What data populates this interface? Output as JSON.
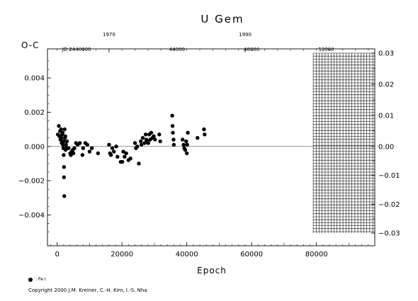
{
  "chart_data": {
    "type": "scatter",
    "title": "U Gem",
    "ylabel": "O-C",
    "xlabel": "Epoch",
    "xlim": [
      -3000,
      98000
    ],
    "ylim": [
      -0.0058,
      0.0057
    ],
    "x_ticks": [
      0,
      20000,
      40000,
      60000,
      80000
    ],
    "x_tick_labels": [
      "0",
      "20000",
      "40000",
      "60000",
      "80000"
    ],
    "y_left_ticks": [
      -0.004,
      -0.002,
      0.0,
      0.002,
      0.004
    ],
    "y_left_tick_labels": [
      "−0.004",
      "−0.002",
      "0.000",
      "0.002",
      "0.004"
    ],
    "y_right_ticks": [
      -0.03,
      -0.02,
      -0.01,
      0.0,
      0.01,
      0.02,
      0.03
    ],
    "y_right_tick_labels": [
      "−0.03",
      "−0.02",
      "−0.01",
      "0.00",
      "0.01",
      "0.02",
      "0.03"
    ],
    "y_right_lim": [
      -0.03,
      0.03
    ],
    "top_year_axis": {
      "ticks": [
        {
          "label": "1970",
          "x": 16000
        },
        {
          "label": "1990",
          "x": 58000
        }
      ]
    },
    "top_jd_axis": {
      "ticks": [
        {
          "label": "JD 2440000",
          "x": 6000
        },
        {
          "label": "44000",
          "x": 37000
        },
        {
          "label": "48000",
          "x": 60000
        },
        {
          "label": "52000",
          "x": 83000
        }
      ]
    },
    "zero_line": 0.0,
    "grid_region": {
      "x_start": 79000,
      "x_end": 98000,
      "y_min": -0.03,
      "y_max": 0.03
    },
    "series": [
      {
        "name": "Pe",
        "marker": "filled-circle",
        "points": [
          [
            200,
            0.0007
          ],
          [
            500,
            0.0012
          ],
          [
            700,
            0.0006
          ],
          [
            900,
            0.0009
          ],
          [
            1000,
            0.0004
          ],
          [
            1200,
            0.001
          ],
          [
            1300,
            0.0005
          ],
          [
            1400,
            0.0002
          ],
          [
            1500,
            0.0007
          ],
          [
            1600,
            0.0003
          ],
          [
            1700,
            0.0008
          ],
          [
            1800,
            0.0001
          ],
          [
            1900,
            -0.0001
          ],
          [
            2000,
            0.0003
          ],
          [
            2000,
            -0.0005
          ],
          [
            2100,
            -0.0012
          ],
          [
            2100,
            -0.0018
          ],
          [
            2200,
            -0.0029
          ],
          [
            2300,
            0.001
          ],
          [
            2400,
            0.0005
          ],
          [
            2500,
            0.0006
          ],
          [
            2600,
            -0.0002
          ],
          [
            2700,
            0.0001
          ],
          [
            2900,
            -0.0001
          ],
          [
            3000,
            0.0003
          ],
          [
            3500,
            -0.0001
          ],
          [
            4000,
            -0.0004
          ],
          [
            4200,
            -0.0005
          ],
          [
            4500,
            -0.0003
          ],
          [
            4800,
            -0.0002
          ],
          [
            5000,
            -0.0004
          ],
          [
            5300,
            -0.0001
          ],
          [
            5800,
            0.0002
          ],
          [
            6300,
            0.0001
          ],
          [
            7000,
            0.0002
          ],
          [
            7800,
            -0.0005
          ],
          [
            8000,
            -0.0001
          ],
          [
            8700,
            0.0002
          ],
          [
            9300,
            0.0001
          ],
          [
            10000,
            -0.0003
          ],
          [
            10700,
            -0.0001
          ],
          [
            12600,
            -0.0004
          ],
          [
            16000,
            0.0001
          ],
          [
            16300,
            -0.0004
          ],
          [
            16600,
            -0.0005
          ],
          [
            17000,
            -0.0001
          ],
          [
            17500,
            -0.0003
          ],
          [
            18200,
            0.0
          ],
          [
            18600,
            -0.0006
          ],
          [
            19600,
            -0.0009
          ],
          [
            20100,
            -0.0009
          ],
          [
            20400,
            -0.0003
          ],
          [
            20800,
            -0.0006
          ],
          [
            21300,
            -0.0004
          ],
          [
            22000,
            -0.0008
          ],
          [
            22600,
            -0.0007
          ],
          [
            24000,
            0.0002
          ],
          [
            24300,
            -0.0001
          ],
          [
            24700,
            0.0
          ],
          [
            25200,
            -0.001
          ],
          [
            25800,
            0.0003
          ],
          [
            26000,
            0.0001
          ],
          [
            26400,
            0.0005
          ],
          [
            27000,
            0.0002
          ],
          [
            27300,
            0.0007
          ],
          [
            27500,
            0.0004
          ],
          [
            27800,
            0.0003
          ],
          [
            28100,
            0.0002
          ],
          [
            28400,
            0.0007
          ],
          [
            28700,
            0.0004
          ],
          [
            29000,
            0.0008
          ],
          [
            29400,
            0.0005
          ],
          [
            29800,
            0.0006
          ],
          [
            30200,
            0.0004
          ],
          [
            31500,
            0.0007
          ],
          [
            31800,
            0.0003
          ],
          [
            35500,
            0.0018
          ],
          [
            35600,
            0.0012
          ],
          [
            35700,
            0.0008
          ],
          [
            35900,
            0.0004
          ],
          [
            36000,
            0.0001
          ],
          [
            38700,
            0.0004
          ],
          [
            39000,
            0.0001
          ],
          [
            39200,
            -0.0001
          ],
          [
            39500,
            -0.0002
          ],
          [
            39800,
            0.0003
          ],
          [
            40000,
            -0.0004
          ],
          [
            40100,
            0.0001
          ],
          [
            40300,
            0.0008
          ],
          [
            43300,
            0.0005
          ],
          [
            45300,
            0.001
          ],
          [
            45500,
            0.0007
          ]
        ]
      }
    ]
  },
  "legend": {
    "label": ": Pe I"
  },
  "copyright": "Copyright 2000 J.M. Kreiner, C.-H. Kim, I.-S. Nha"
}
